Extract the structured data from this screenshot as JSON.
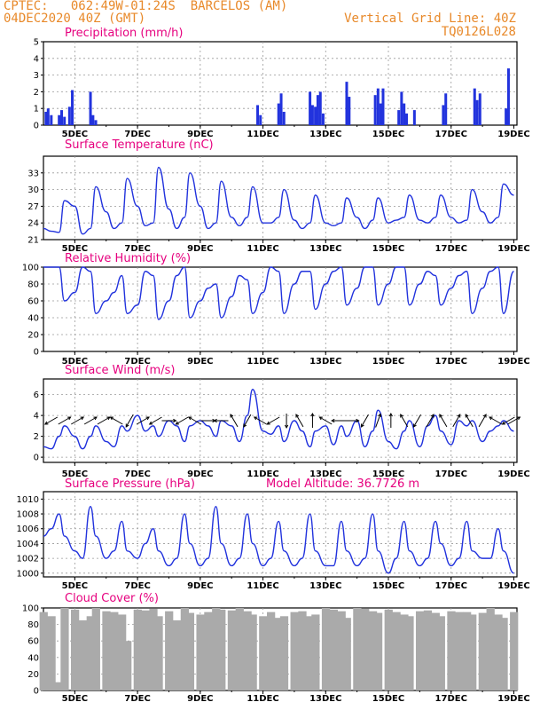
{
  "header": {
    "line1_left": "CPTEC:   062:49W-01:24S  BARCELOS (AM)",
    "line2_left": "04DEC2020 40Z (GMT)",
    "line2_right": "Vertical Grid Line: 40Z",
    "line3_right": "TQ0126L028"
  },
  "colors": {
    "header": "#e8892a",
    "title": "#e6007e",
    "series": "#2233dd",
    "cloud": "#aaaaaa",
    "grid": "#999999"
  },
  "chart_data": [
    {
      "type": "bar",
      "title": "Precipitation (mm/h)",
      "x": [
        4.08,
        4.15,
        4.25,
        4.5,
        4.58,
        4.67,
        4.83,
        4.92,
        5.5,
        5.58,
        5.67,
        10.83,
        10.92,
        11.5,
        11.58,
        11.67,
        12.5,
        12.58,
        12.67,
        12.75,
        12.83,
        12.92,
        13.67,
        13.75,
        14.58,
        14.67,
        14.75,
        14.83,
        15.33,
        15.42,
        15.5,
        15.58,
        15.83,
        16.75,
        16.83,
        17.75,
        17.83,
        17.92,
        18.75,
        18.83
      ],
      "values": [
        0.8,
        1.0,
        0.6,
        0.6,
        0.9,
        0.5,
        1.1,
        2.1,
        2.0,
        0.6,
        0.3,
        1.2,
        0.6,
        1.3,
        1.9,
        0.8,
        2.0,
        1.2,
        1.1,
        1.8,
        2.0,
        0.7,
        2.6,
        1.7,
        1.8,
        2.2,
        1.3,
        2.2,
        0.9,
        2.0,
        1.3,
        0.7,
        0.9,
        1.2,
        1.9,
        2.2,
        1.5,
        1.9,
        1.0,
        3.4
      ],
      "xlim": [
        4,
        19.1
      ],
      "ylim": [
        0,
        5
      ],
      "yticks": [
        0,
        1,
        2,
        3,
        4,
        5
      ],
      "xtick_labels": [
        "5DEC",
        "7DEC",
        "9DEC",
        "11DEC",
        "13DEC",
        "15DEC",
        "17DEC",
        "19DEC"
      ]
    },
    {
      "type": "line",
      "title": "Surface Temperature (nC)",
      "x": [
        4.0,
        4.25,
        4.5,
        4.67,
        5.0,
        5.25,
        5.5,
        5.67,
        6.0,
        6.25,
        6.5,
        6.67,
        7.0,
        7.25,
        7.5,
        7.67,
        8.0,
        8.25,
        8.5,
        8.67,
        9.0,
        9.25,
        9.5,
        9.67,
        10.0,
        10.25,
        10.5,
        10.67,
        11.0,
        11.25,
        11.5,
        11.67,
        12.0,
        12.25,
        12.5,
        12.67,
        13.0,
        13.25,
        13.5,
        13.67,
        14.0,
        14.25,
        14.5,
        14.67,
        15.0,
        15.25,
        15.5,
        15.67,
        16.0,
        16.25,
        16.5,
        16.67,
        17.0,
        17.25,
        17.5,
        17.67,
        18.0,
        18.25,
        18.5,
        18.67,
        19.0
      ],
      "values": [
        23,
        22.5,
        22.3,
        28,
        27,
        22,
        23,
        30.5,
        26,
        23,
        24,
        32,
        27,
        23.5,
        24,
        34,
        26.5,
        23,
        25,
        33,
        27,
        23,
        24,
        31.5,
        25,
        23.5,
        25,
        30.5,
        24,
        24,
        25,
        30,
        24.5,
        23,
        24,
        29,
        24,
        23.5,
        24,
        28.5,
        25,
        23,
        24.5,
        28.5,
        24,
        24.5,
        25,
        29,
        24.5,
        24,
        25,
        29,
        25,
        24,
        24.5,
        30,
        26,
        24,
        25,
        31,
        29
      ],
      "xlim": [
        4,
        19.1
      ],
      "ylim": [
        21,
        36
      ],
      "yticks": [
        21,
        24,
        27,
        30,
        33
      ],
      "xtick_labels": [
        "5DEC",
        "7DEC",
        "9DEC",
        "11DEC",
        "13DEC",
        "15DEC",
        "17DEC",
        "19DEC"
      ]
    },
    {
      "type": "line",
      "title": "Relative Humidity (%)",
      "x": [
        4.0,
        4.25,
        4.5,
        4.67,
        5.0,
        5.25,
        5.5,
        5.67,
        6.0,
        6.25,
        6.5,
        6.67,
        7.0,
        7.25,
        7.5,
        7.67,
        8.0,
        8.25,
        8.5,
        8.67,
        9.0,
        9.25,
        9.5,
        9.67,
        10.0,
        10.25,
        10.5,
        10.67,
        11.0,
        11.25,
        11.5,
        11.67,
        12.0,
        12.25,
        12.5,
        12.67,
        13.0,
        13.25,
        13.5,
        13.67,
        14.0,
        14.25,
        14.5,
        14.67,
        15.0,
        15.25,
        15.5,
        15.67,
        16.0,
        16.25,
        16.5,
        16.67,
        17.0,
        17.25,
        17.5,
        17.67,
        18.0,
        18.25,
        18.5,
        18.67,
        19.0
      ],
      "values": [
        100,
        100,
        100,
        60,
        70,
        100,
        95,
        45,
        60,
        70,
        90,
        45,
        55,
        95,
        90,
        38,
        60,
        90,
        100,
        40,
        60,
        75,
        80,
        40,
        65,
        90,
        85,
        45,
        70,
        100,
        95,
        45,
        80,
        95,
        95,
        50,
        80,
        95,
        100,
        55,
        75,
        100,
        100,
        55,
        80,
        100,
        100,
        55,
        80,
        95,
        90,
        55,
        75,
        90,
        95,
        45,
        75,
        95,
        100,
        45,
        95
      ],
      "xlim": [
        4,
        19.1
      ],
      "ylim": [
        0,
        100
      ],
      "yticks": [
        0,
        20,
        40,
        60,
        80,
        100
      ],
      "xtick_labels": [
        "5DEC",
        "7DEC",
        "9DEC",
        "11DEC",
        "13DEC",
        "15DEC",
        "17DEC",
        "19DEC"
      ]
    },
    {
      "type": "line",
      "title": "Surface Wind (m/s)",
      "x": [
        4.0,
        4.25,
        4.5,
        4.67,
        5.0,
        5.25,
        5.5,
        5.67,
        6.0,
        6.25,
        6.5,
        6.67,
        7.0,
        7.25,
        7.5,
        7.67,
        8.0,
        8.25,
        8.5,
        8.67,
        9.0,
        9.25,
        9.5,
        9.67,
        10.0,
        10.25,
        10.5,
        10.67,
        11.0,
        11.25,
        11.5,
        11.67,
        12.0,
        12.25,
        12.5,
        12.67,
        13.0,
        13.25,
        13.5,
        13.67,
        14.0,
        14.25,
        14.5,
        14.67,
        15.0,
        15.25,
        15.5,
        15.67,
        16.0,
        16.25,
        16.5,
        16.67,
        17.0,
        17.25,
        17.5,
        17.67,
        18.0,
        18.25,
        18.5,
        18.67,
        19.0
      ],
      "values": [
        1,
        0.8,
        2,
        3,
        2,
        0.8,
        2,
        3,
        1.5,
        1,
        3,
        2.5,
        4,
        2.5,
        3,
        2,
        3.5,
        3,
        1.5,
        3,
        3.5,
        3,
        2,
        3.5,
        3,
        1.5,
        4,
        6.5,
        2.5,
        2.2,
        3,
        1.5,
        3.5,
        2.5,
        1,
        2.5,
        3,
        1.2,
        3,
        2,
        3.5,
        1,
        2.5,
        4.5,
        1.5,
        0.8,
        2.5,
        3.5,
        1,
        3,
        4,
        2.5,
        1.2,
        3.5,
        3,
        3.5,
        1.5,
        2.5,
        3,
        3.5,
        2.5
      ],
      "xlim": [
        4,
        19.1
      ],
      "ylim": [
        -0.5,
        7.5
      ],
      "yticks": [
        0,
        2,
        4,
        6
      ],
      "arrows": [
        {
          "x": 4.25,
          "dir": 240
        },
        {
          "x": 4.67,
          "dir": 60
        },
        {
          "x": 5.08,
          "dir": 60
        },
        {
          "x": 5.5,
          "dir": 60
        },
        {
          "x": 5.92,
          "dir": 60
        },
        {
          "x": 6.33,
          "dir": 300
        },
        {
          "x": 6.75,
          "dir": 210
        },
        {
          "x": 7.17,
          "dir": 60
        },
        {
          "x": 7.58,
          "dir": 240
        },
        {
          "x": 8.0,
          "dir": 90
        },
        {
          "x": 8.42,
          "dir": 240
        },
        {
          "x": 8.83,
          "dir": 300
        },
        {
          "x": 9.25,
          "dir": 90
        },
        {
          "x": 9.67,
          "dir": 270
        },
        {
          "x": 10.08,
          "dir": 330
        },
        {
          "x": 10.5,
          "dir": 210
        },
        {
          "x": 10.92,
          "dir": 300
        },
        {
          "x": 11.33,
          "dir": 240
        },
        {
          "x": 11.75,
          "dir": 180
        },
        {
          "x": 12.17,
          "dir": 330
        },
        {
          "x": 12.58,
          "dir": 0
        },
        {
          "x": 13.0,
          "dir": 300
        },
        {
          "x": 13.42,
          "dir": 270
        },
        {
          "x": 13.83,
          "dir": 90
        },
        {
          "x": 14.25,
          "dir": 210
        },
        {
          "x": 14.67,
          "dir": 20
        },
        {
          "x": 15.08,
          "dir": 0
        },
        {
          "x": 15.5,
          "dir": 330
        },
        {
          "x": 15.92,
          "dir": 210
        },
        {
          "x": 16.33,
          "dir": 30
        },
        {
          "x": 16.75,
          "dir": 330
        },
        {
          "x": 17.17,
          "dir": 30
        },
        {
          "x": 17.58,
          "dir": 330
        },
        {
          "x": 18.0,
          "dir": 30
        },
        {
          "x": 18.42,
          "dir": 300
        },
        {
          "x": 18.83,
          "dir": 240
        },
        {
          "x": 19.0,
          "dir": 60
        }
      ],
      "xtick_labels": [
        "5DEC",
        "7DEC",
        "9DEC",
        "11DEC",
        "13DEC",
        "15DEC",
        "17DEC",
        "19DEC"
      ]
    },
    {
      "type": "line",
      "title": "Surface Pressure (hPa)",
      "subtitle": "Model Altitude: 36.7726 m",
      "x": [
        4.0,
        4.25,
        4.5,
        4.67,
        5.0,
        5.25,
        5.5,
        5.67,
        6.0,
        6.25,
        6.5,
        6.67,
        7.0,
        7.25,
        7.5,
        7.67,
        8.0,
        8.25,
        8.5,
        8.67,
        9.0,
        9.25,
        9.5,
        9.67,
        10.0,
        10.25,
        10.5,
        10.67,
        11.0,
        11.25,
        11.5,
        11.67,
        12.0,
        12.25,
        12.5,
        12.67,
        13.0,
        13.25,
        13.5,
        13.67,
        14.0,
        14.25,
        14.5,
        14.67,
        15.0,
        15.25,
        15.5,
        15.67,
        16.0,
        16.25,
        16.5,
        16.67,
        17.0,
        17.25,
        17.5,
        17.67,
        18.0,
        18.25,
        18.5,
        18.67,
        19.0
      ],
      "values": [
        1005,
        1006,
        1008,
        1005,
        1003,
        1002,
        1009,
        1005,
        1002,
        1003,
        1007,
        1003,
        1002,
        1004,
        1006,
        1003,
        1001,
        1002,
        1008,
        1004,
        1001,
        1002,
        1009,
        1004,
        1001,
        1002,
        1008,
        1004,
        1001,
        1002,
        1007,
        1003,
        1001,
        1002,
        1008,
        1003,
        1001,
        1001,
        1007,
        1003,
        1001,
        1002,
        1008,
        1003,
        1000,
        1002,
        1007,
        1003,
        1001,
        1002,
        1007,
        1004,
        1001,
        1002,
        1007,
        1003,
        1002,
        1002,
        1006,
        1003,
        1000
      ],
      "xlim": [
        4,
        19.1
      ],
      "ylim": [
        999.5,
        1011
      ],
      "yticks": [
        1000,
        1002,
        1004,
        1006,
        1008,
        1010
      ],
      "xtick_labels": [
        "5DEC",
        "7DEC",
        "9DEC",
        "11DEC",
        "13DEC",
        "15DEC",
        "17DEC",
        "19DEC"
      ]
    },
    {
      "type": "area",
      "title": "Cloud Cover (%)",
      "x": [
        4.0,
        4.25,
        4.5,
        4.67,
        5.0,
        5.25,
        5.5,
        5.67,
        6.0,
        6.25,
        6.5,
        6.67,
        7.0,
        7.25,
        7.5,
        7.67,
        8.0,
        8.25,
        8.5,
        8.67,
        9.0,
        9.25,
        9.5,
        9.67,
        10.0,
        10.25,
        10.5,
        10.67,
        11.0,
        11.25,
        11.5,
        11.67,
        12.0,
        12.25,
        12.5,
        12.67,
        13.0,
        13.25,
        13.5,
        13.67,
        14.0,
        14.25,
        14.5,
        14.67,
        15.0,
        15.25,
        15.5,
        15.67,
        16.0,
        16.25,
        16.5,
        16.67,
        17.0,
        17.25,
        17.5,
        17.67,
        18.0,
        18.25,
        18.5,
        18.67,
        19.0
      ],
      "values": [
        95,
        90,
        10,
        100,
        98,
        85,
        90,
        100,
        96,
        95,
        92,
        60,
        98,
        97,
        99,
        90,
        96,
        85,
        100,
        94,
        92,
        95,
        100,
        98,
        97,
        100,
        96,
        92,
        90,
        95,
        88,
        90,
        95,
        96,
        90,
        92,
        100,
        98,
        96,
        88,
        100,
        99,
        96,
        94,
        98,
        95,
        92,
        90,
        96,
        97,
        94,
        90,
        96,
        95,
        95,
        92,
        94,
        100,
        92,
        88,
        95
      ],
      "xlim": [
        4,
        19.1
      ],
      "ylim": [
        0,
        100
      ],
      "yticks": [
        0,
        20,
        40,
        60,
        80,
        100
      ],
      "xtick_labels": [
        "5DEC",
        "7DEC",
        "9DEC",
        "11DEC",
        "13DEC",
        "15DEC",
        "17DEC",
        "19DEC"
      ]
    }
  ]
}
